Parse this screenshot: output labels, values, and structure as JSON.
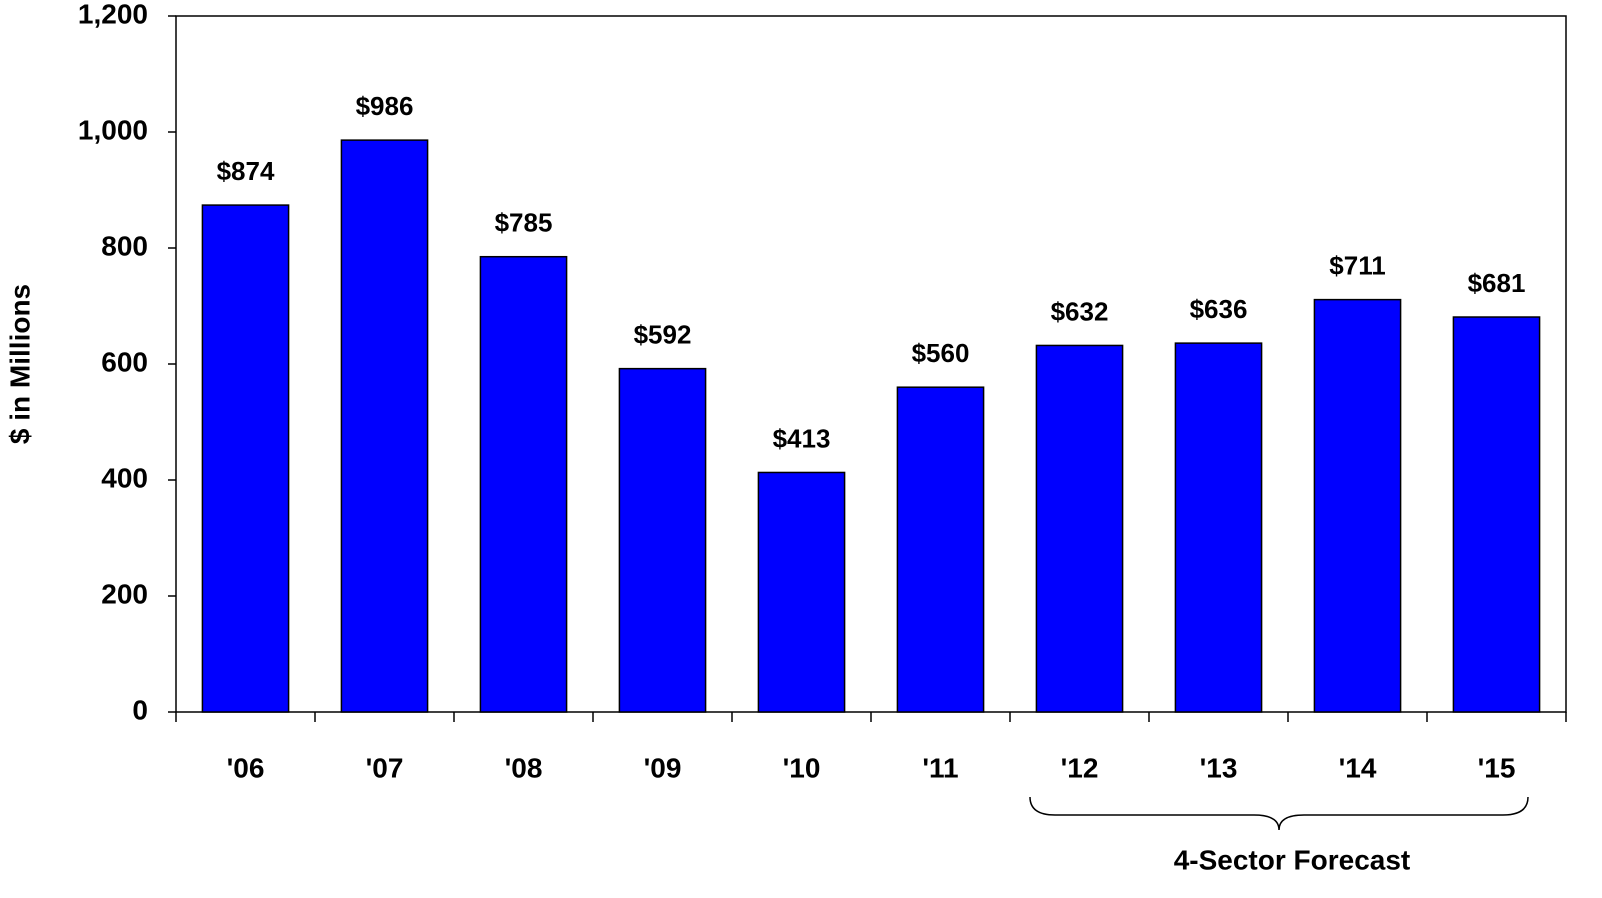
{
  "chart_data": {
    "type": "bar",
    "y_label": "$ in Millions",
    "categories": [
      "'06",
      "'07",
      "'08",
      "'09",
      "'10",
      "'11",
      "'12",
      "'13",
      "'14",
      "'15"
    ],
    "values": [
      874,
      986,
      785,
      592,
      413,
      560,
      632,
      636,
      711,
      681
    ],
    "value_labels": [
      "$874",
      "$986",
      "$785",
      "$592",
      "$413",
      "$560",
      "$632",
      "$636",
      "$711",
      "$681"
    ],
    "color": "#0000ff",
    "ylim": [
      0,
      1200
    ],
    "yticks": [
      0,
      200,
      400,
      600,
      800,
      {
        "value": 1000,
        "label": "1,000"
      },
      {
        "value": 1200,
        "label": "1,200"
      }
    ],
    "grid": false,
    "annotation": "4-Sector Forecast"
  }
}
